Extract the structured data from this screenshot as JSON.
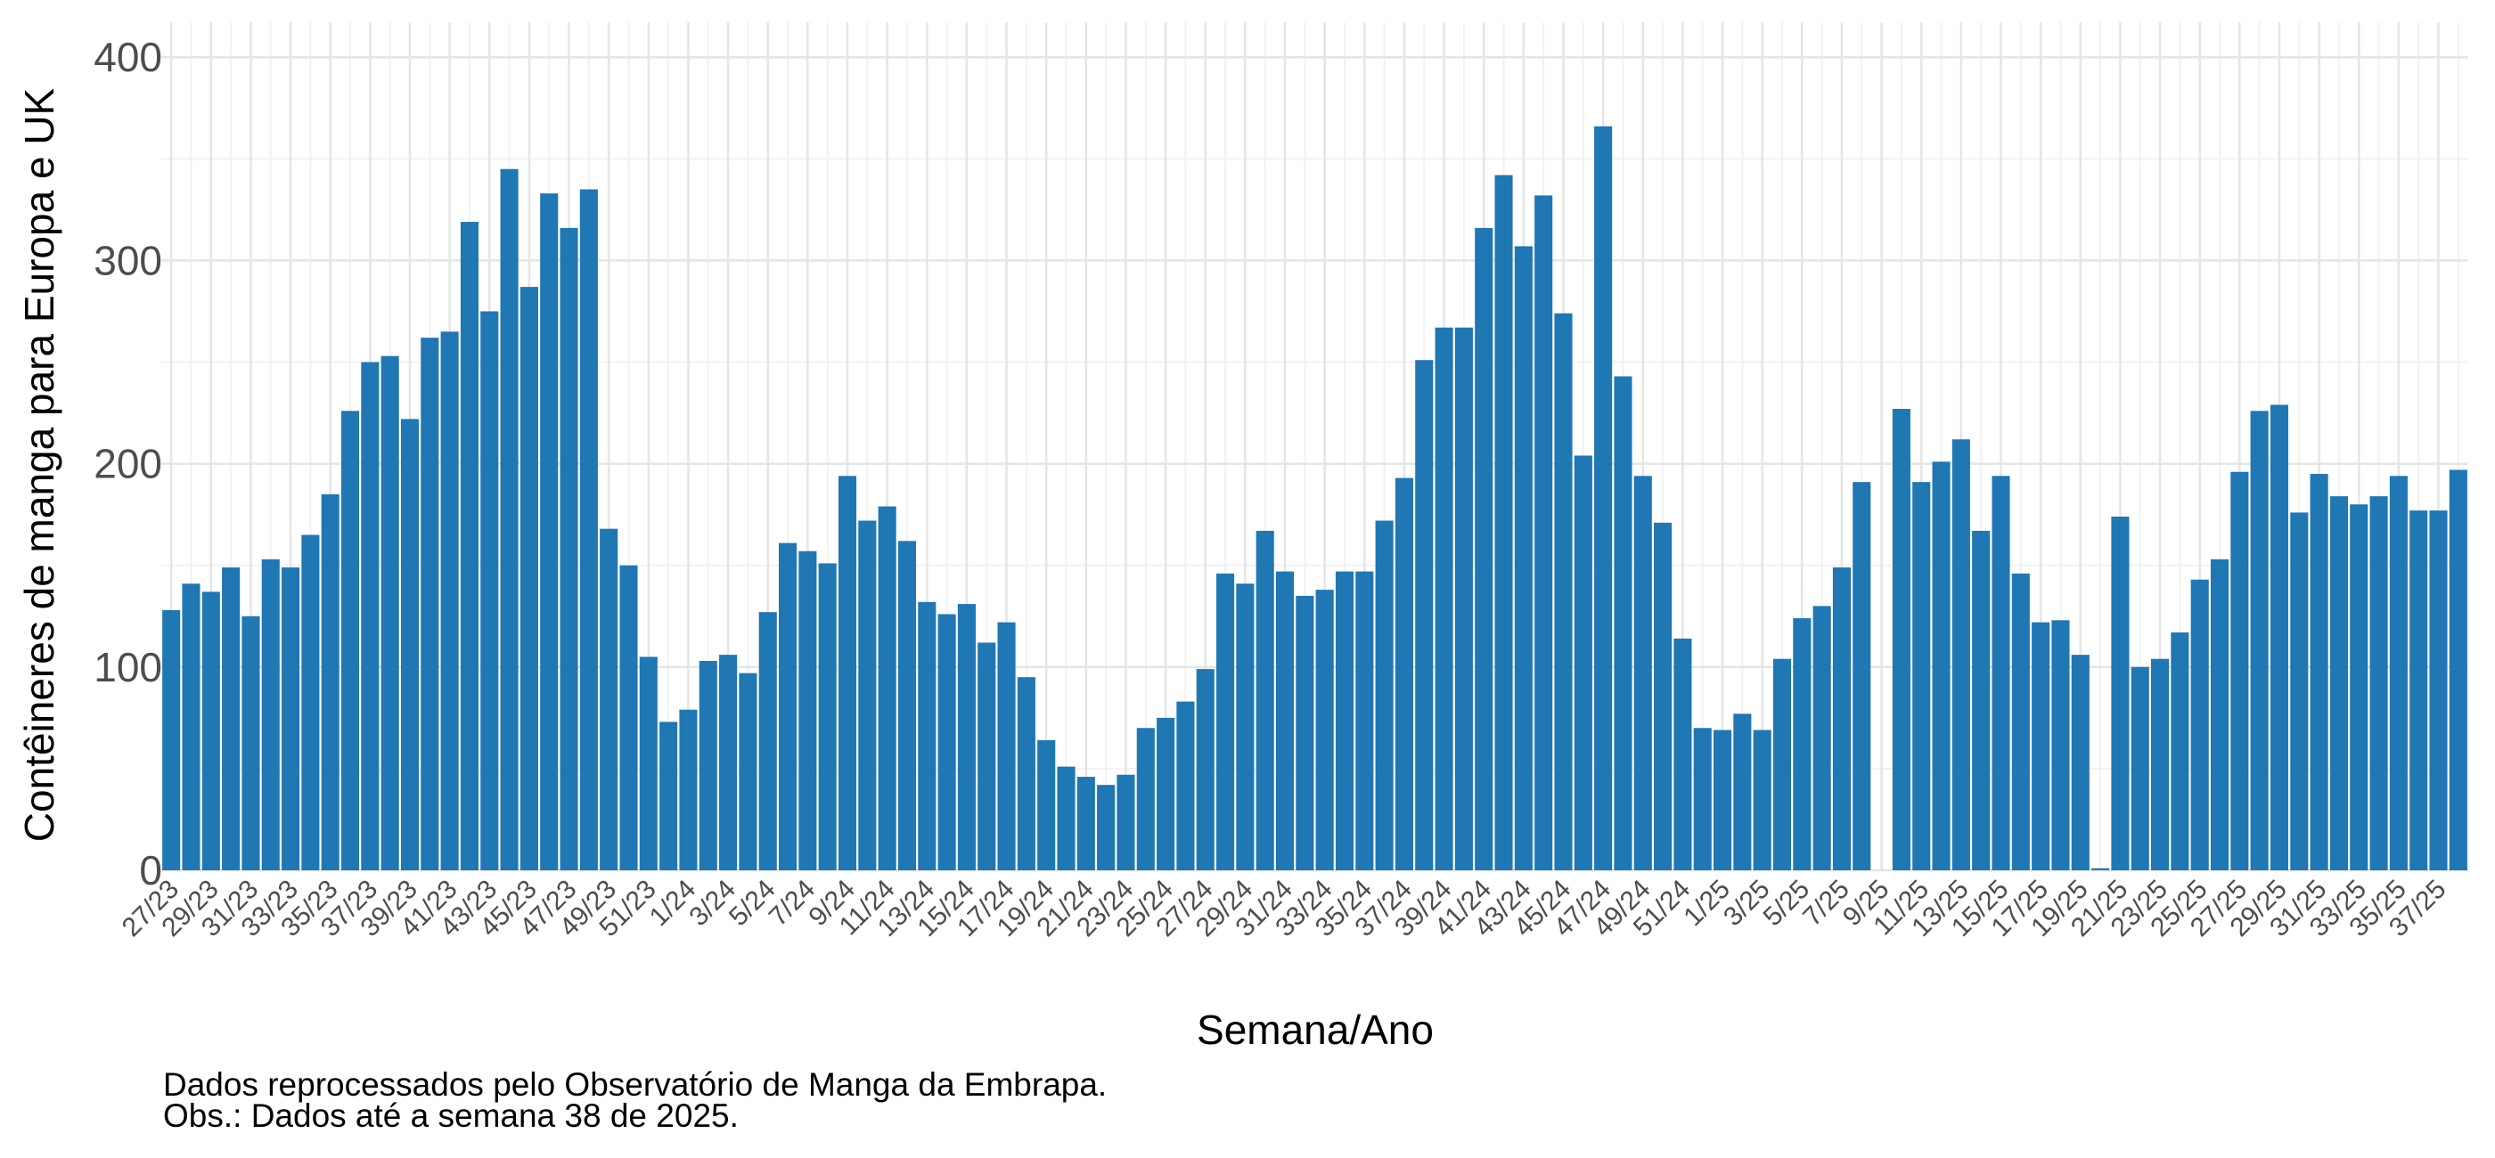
{
  "chart_data": {
    "type": "bar",
    "xlabel": "Semana/Ano",
    "ylabel": "Contêineres de manga para Europa e UK",
    "ylim": [
      0,
      415
    ],
    "yticks": [
      0,
      100,
      200,
      300,
      400
    ],
    "grid": true,
    "bar_color": "#1F77B4",
    "categories": [
      "27/23",
      "28/23",
      "29/23",
      "30/23",
      "31/23",
      "32/23",
      "33/23",
      "34/23",
      "35/23",
      "36/23",
      "37/23",
      "38/23",
      "39/23",
      "40/23",
      "41/23",
      "42/23",
      "43/23",
      "44/23",
      "45/23",
      "46/23",
      "47/23",
      "48/23",
      "49/23",
      "50/23",
      "51/23",
      "52/23",
      "1/24",
      "2/24",
      "3/24",
      "4/24",
      "5/24",
      "6/24",
      "7/24",
      "8/24",
      "9/24",
      "10/24",
      "11/24",
      "12/24",
      "13/24",
      "14/24",
      "15/24",
      "16/24",
      "17/24",
      "18/24",
      "19/24",
      "20/24",
      "21/24",
      "22/24",
      "23/24",
      "24/24",
      "25/24",
      "26/24",
      "27/24",
      "28/24",
      "29/24",
      "30/24",
      "31/24",
      "32/24",
      "33/24",
      "34/24",
      "35/24",
      "36/24",
      "37/24",
      "38/24",
      "39/24",
      "40/24",
      "41/24",
      "42/24",
      "43/24",
      "44/24",
      "45/24",
      "46/24",
      "47/24",
      "48/24",
      "49/24",
      "50/24",
      "51/24",
      "52/24",
      "1/25",
      "2/25",
      "3/25",
      "4/25",
      "5/25",
      "6/25",
      "7/25",
      "8/25",
      "9/25",
      "10/25",
      "11/25",
      "12/25",
      "13/25",
      "14/25",
      "15/25",
      "16/25",
      "17/25",
      "18/25",
      "19/25",
      "20/25",
      "21/25",
      "22/25",
      "23/25",
      "24/25",
      "25/25",
      "26/25",
      "27/25",
      "28/25",
      "29/25",
      "30/25",
      "31/25",
      "32/25",
      "33/25",
      "34/25",
      "35/25",
      "36/25",
      "37/25",
      "38/25"
    ],
    "values": [
      128,
      141,
      137,
      149,
      125,
      153,
      149,
      165,
      185,
      226,
      250,
      253,
      222,
      262,
      265,
      319,
      275,
      345,
      287,
      333,
      316,
      335,
      168,
      150,
      105,
      73,
      79,
      103,
      106,
      97,
      127,
      161,
      157,
      151,
      194,
      172,
      179,
      162,
      132,
      126,
      131,
      112,
      122,
      95,
      64,
      51,
      46,
      42,
      47,
      70,
      75,
      83,
      99,
      146,
      141,
      167,
      147,
      135,
      138,
      147,
      147,
      172,
      193,
      251,
      267,
      267,
      316,
      342,
      307,
      332,
      274,
      204,
      366,
      243,
      194,
      171,
      114,
      70,
      69,
      77,
      69,
      104,
      124,
      130,
      149,
      191,
      0,
      227,
      191,
      201,
      212,
      167,
      194,
      146,
      122,
      123,
      106,
      1,
      174,
      100,
      104,
      117,
      143,
      153,
      196,
      226,
      229,
      176,
      195,
      184,
      180,
      184,
      194,
      177,
      177,
      197
    ],
    "xtick_labels": [
      "27/23",
      "29/23",
      "31/23",
      "33/23",
      "35/23",
      "37/23",
      "39/23",
      "41/23",
      "43/23",
      "45/23",
      "47/23",
      "49/23",
      "51/23",
      "1/24",
      "3/24",
      "5/24",
      "7/24",
      "9/24",
      "11/24",
      "13/24",
      "15/24",
      "17/24",
      "19/24",
      "21/24",
      "23/24",
      "25/24",
      "27/24",
      "29/24",
      "31/24",
      "33/24",
      "35/24",
      "37/24",
      "39/24",
      "41/24",
      "43/24",
      "45/24",
      "47/24",
      "49/24",
      "51/24",
      "1/25",
      "3/25",
      "5/25",
      "7/25",
      "9/25",
      "11/25",
      "13/25",
      "15/25",
      "17/25",
      "19/25",
      "21/25",
      "23/25",
      "25/25",
      "27/25",
      "29/25",
      "31/25",
      "33/25",
      "35/25",
      "37/25"
    ]
  },
  "caption": {
    "line1": "Dados reprocessados pelo Observatório de Manga da Embrapa.",
    "line2": "Obs.: Dados até a semana 38 de 2025."
  }
}
